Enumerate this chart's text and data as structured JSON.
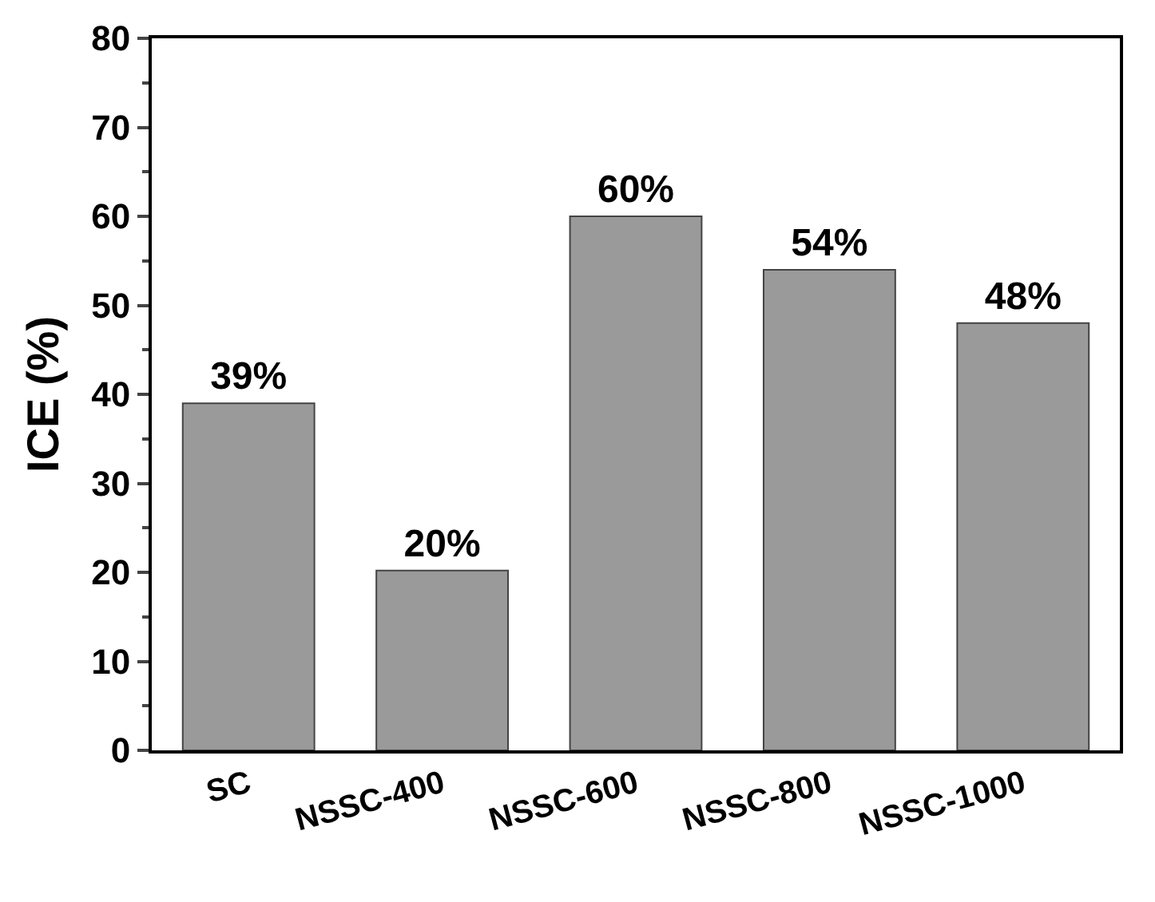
{
  "chart_data": {
    "type": "bar",
    "ylabel": "ICE (%)",
    "categories": [
      "SC",
      "NSSC-400",
      "NSSC-600",
      "NSSC-800",
      "NSSC-1000"
    ],
    "values": [
      39,
      20.2,
      60,
      54,
      48
    ],
    "value_labels": [
      "39%",
      "20%",
      "60%",
      "54%",
      "48%"
    ],
    "color": "#9a9a9a",
    "ylim": [
      0,
      80
    ],
    "yticks": [
      0,
      10,
      20,
      30,
      40,
      50,
      60,
      70,
      80
    ],
    "grid": false,
    "legend": false
  }
}
